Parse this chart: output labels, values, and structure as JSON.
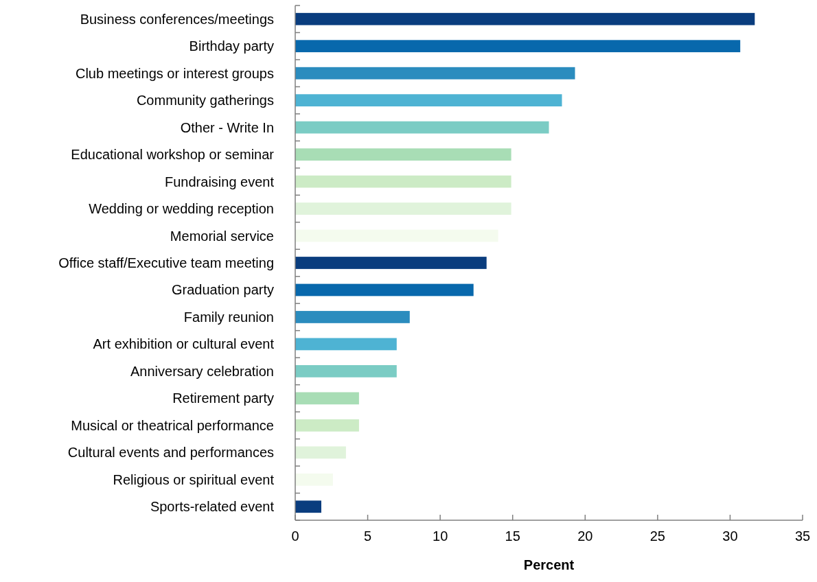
{
  "chart_data": {
    "type": "bar",
    "orientation": "horizontal",
    "xlabel": "Percent",
    "categories": [
      "Business conferences/meetings",
      "Birthday party",
      "Club meetings or interest groups",
      "Community gatherings",
      "Other - Write In",
      "Educational workshop or seminar",
      "Fundraising event",
      "Wedding or wedding reception",
      "Memorial service",
      "Office staff/Executive team meeting",
      "Graduation party",
      "Family reunion",
      "Art exhibition or cultural event",
      "Anniversary celebration",
      "Retirement party",
      "Musical or theatrical performance",
      "Cultural events and performances",
      "Religious or spiritual event",
      "Sports-related event"
    ],
    "values": [
      31.7,
      30.7,
      19.3,
      18.4,
      17.5,
      14.9,
      14.9,
      14.9,
      14.0,
      13.2,
      12.3,
      7.9,
      7.0,
      7.0,
      4.4,
      4.4,
      3.5,
      2.6,
      1.8
    ],
    "colors": [
      "#0a3d7e",
      "#0868ac",
      "#2b8cbe",
      "#4eb3d3",
      "#7bccc4",
      "#a8ddb5",
      "#ccebc5",
      "#e0f3db",
      "#f4fbee",
      "#0a3d7e",
      "#0868ac",
      "#2b8cbe",
      "#4eb3d3",
      "#7bccc4",
      "#a8ddb5",
      "#ccebc5",
      "#e0f3db",
      "#f4fbee",
      "#0a3d7e"
    ],
    "xlim": [
      0,
      35
    ],
    "xticks": [
      0,
      5,
      10,
      15,
      20,
      25,
      30,
      35
    ]
  }
}
